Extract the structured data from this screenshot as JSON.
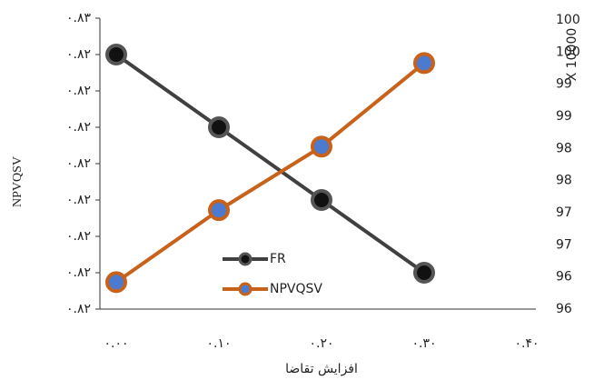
{
  "chart_data": {
    "type": "line",
    "x": [
      0,
      0.1,
      0.2,
      0.3
    ],
    "xlim": [
      0,
      0.4
    ],
    "xticks": [
      {
        "value": 0,
        "label": "٠.٠٠"
      },
      {
        "value": 0.1,
        "label": "٠.١٠"
      },
      {
        "value": 0.2,
        "label": "٠.٢٠"
      },
      {
        "value": 0.3,
        "label": "٠.٣٠"
      },
      {
        "value": 0.4,
        "label": "٠.۴٠"
      }
    ],
    "xlabel": "افزایش تقاضا",
    "ylabel": "NPVQSV",
    "y2label": "X 10000",
    "ylim": [
      0.821,
      0.825
    ],
    "yticks": [
      {
        "value": 0.821,
        "label": "٠.٨٢"
      },
      {
        "value": 0.8215,
        "label": "٠.٨٢"
      },
      {
        "value": 0.822,
        "label": "٠.٨٢"
      },
      {
        "value": 0.8225,
        "label": "٠.٨٢"
      },
      {
        "value": 0.823,
        "label": "٠.٨٢"
      },
      {
        "value": 0.8235,
        "label": "٠.٨٢"
      },
      {
        "value": 0.824,
        "label": "٠.٨٢"
      },
      {
        "value": 0.8245,
        "label": "٠.٨٢"
      },
      {
        "value": 0.825,
        "label": "٠.٨٣"
      }
    ],
    "y2lim": [
      95.6,
      100.1
    ],
    "y2ticks": [
      {
        "value": 95.6,
        "label": "96"
      },
      {
        "value": 96.1,
        "label": "96"
      },
      {
        "value": 96.6,
        "label": "97"
      },
      {
        "value": 97.1,
        "label": "97"
      },
      {
        "value": 97.6,
        "label": "98"
      },
      {
        "value": 98.1,
        "label": "98"
      },
      {
        "value": 98.6,
        "label": "99"
      },
      {
        "value": 99.1,
        "label": "99"
      },
      {
        "value": 99.6,
        "label": "100"
      },
      {
        "value": 100.1,
        "label": "100"
      }
    ],
    "series": [
      {
        "name": "FR",
        "color": "#404040",
        "values": [
          0.8245,
          0.8235,
          0.8225,
          0.8215
        ]
      },
      {
        "name": "NPVQSV",
        "color": "#c8621a",
        "axis": "y2",
        "values": [
          96.02,
          97.14,
          98.13,
          99.43
        ]
      }
    ]
  }
}
